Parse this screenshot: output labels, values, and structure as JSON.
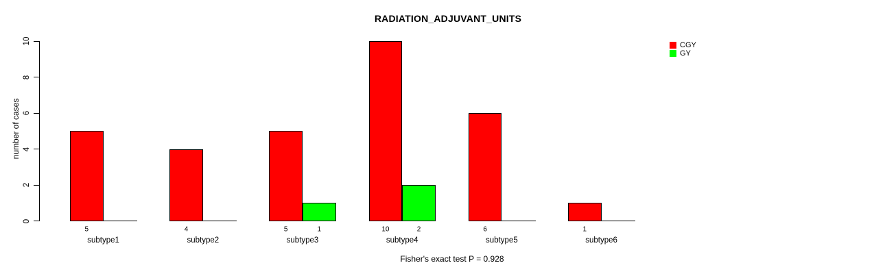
{
  "chart_data": {
    "type": "bar",
    "title": "RADIATION_ADJUVANT_UNITS",
    "ylabel": "number of cases",
    "xlabel": "",
    "footer": "Fisher's exact test P = 0.928",
    "categories": [
      "subtype1",
      "subtype2",
      "subtype3",
      "subtype4",
      "subtype5",
      "subtype6"
    ],
    "series": [
      {
        "name": "CGY",
        "color": "#FF0000",
        "values": [
          5,
          4,
          5,
          10,
          6,
          1
        ]
      },
      {
        "name": "GY",
        "color": "#00FF00",
        "values": [
          0,
          0,
          1,
          2,
          0,
          0
        ]
      }
    ],
    "bar_count_labels": {
      "CGY": [
        "5",
        "4",
        "5",
        "10",
        "6",
        "1"
      ],
      "GY": [
        "",
        "",
        "1",
        "2",
        "",
        ""
      ]
    },
    "yticks": [
      0,
      2,
      4,
      6,
      8,
      10
    ],
    "ylim": [
      0,
      10
    ],
    "grid": false,
    "legend_position": "top-right",
    "axis_color": "#000000",
    "background_color": "#FFFFFF"
  }
}
